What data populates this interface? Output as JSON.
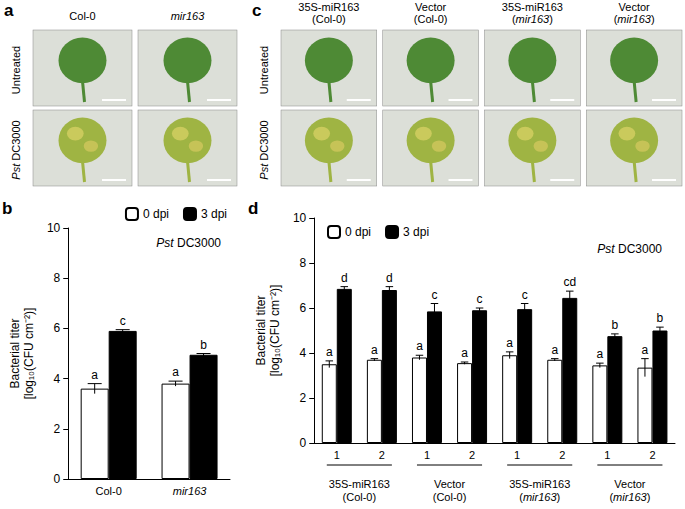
{
  "italic_terms": [
    "mir163",
    "Pst"
  ],
  "photo_panels": [
    {
      "panel": "a",
      "columns": [
        "Col-0",
        "mir163"
      ],
      "rows": [
        "Untreated",
        "Pst DC3000"
      ]
    },
    {
      "panel": "c",
      "columns": [
        "35S-miR163\n(Col-0)",
        "Vector\n(Col-0)",
        "35S-miR163\n(mir163)",
        "Vector\n(mir163)"
      ],
      "rows": [
        "Untreated",
        "Pst DC3000"
      ]
    }
  ],
  "chart_data": [
    {
      "type": "bar",
      "panel": "b",
      "annotation": "Pst DC3000",
      "y_label": "Bacterial titer\n[log₁₀(CFU cm⁻²)]",
      "categories": [
        "Col-0",
        "mir163"
      ],
      "series": [
        {
          "name": "0 dpi",
          "color": "#ffffff",
          "values": [
            3.6,
            3.8
          ],
          "errors": [
            0.2,
            0.1
          ],
          "significance": [
            "a",
            "a"
          ]
        },
        {
          "name": "3 dpi",
          "color": "#000000",
          "values": [
            5.9,
            4.95
          ],
          "errors": [
            0.05,
            0.05
          ],
          "significance": [
            "c",
            "b"
          ]
        }
      ],
      "ylim": [
        0,
        10
      ],
      "yticks": [
        0,
        2,
        4,
        6,
        8,
        10
      ],
      "legend": "top right"
    },
    {
      "type": "bar",
      "panel": "d",
      "annotation": "Pst DC3000",
      "y_label": "Bacterial titer\n[log₁₀(CFU cm⁻²)]",
      "categories": [
        "1",
        "2",
        "1",
        "2",
        "1",
        "2",
        "1",
        "2"
      ],
      "group_labels": [
        "35S-miR163\n(Col-0)",
        "Vector\n(Col-0)",
        "35S-miR163\n(mir163)",
        "Vector\n(mir163)"
      ],
      "series": [
        {
          "name": "0 dpi",
          "color": "#ffffff",
          "values": [
            3.5,
            3.7,
            3.8,
            3.55,
            3.9,
            3.7,
            3.45,
            3.35
          ],
          "errors": [
            0.15,
            0.05,
            0.1,
            0.05,
            0.15,
            0.05,
            0.1,
            0.4
          ],
          "significance": [
            "a",
            "a",
            "a",
            "a",
            "a",
            "a",
            "a",
            "a"
          ]
        },
        {
          "name": "3 dpi",
          "color": "#000000",
          "values": [
            6.85,
            6.8,
            5.85,
            5.9,
            5.95,
            6.45,
            4.75,
            5.0
          ],
          "errors": [
            0.1,
            0.15,
            0.35,
            0.1,
            0.25,
            0.3,
            0.1,
            0.15
          ],
          "significance": [
            "d",
            "d",
            "c",
            "c",
            "c",
            "cd",
            "b",
            "b"
          ]
        }
      ],
      "ylim": [
        0,
        10
      ],
      "yticks": [
        0,
        2,
        4,
        6,
        8,
        10
      ],
      "legend": "top left"
    }
  ]
}
